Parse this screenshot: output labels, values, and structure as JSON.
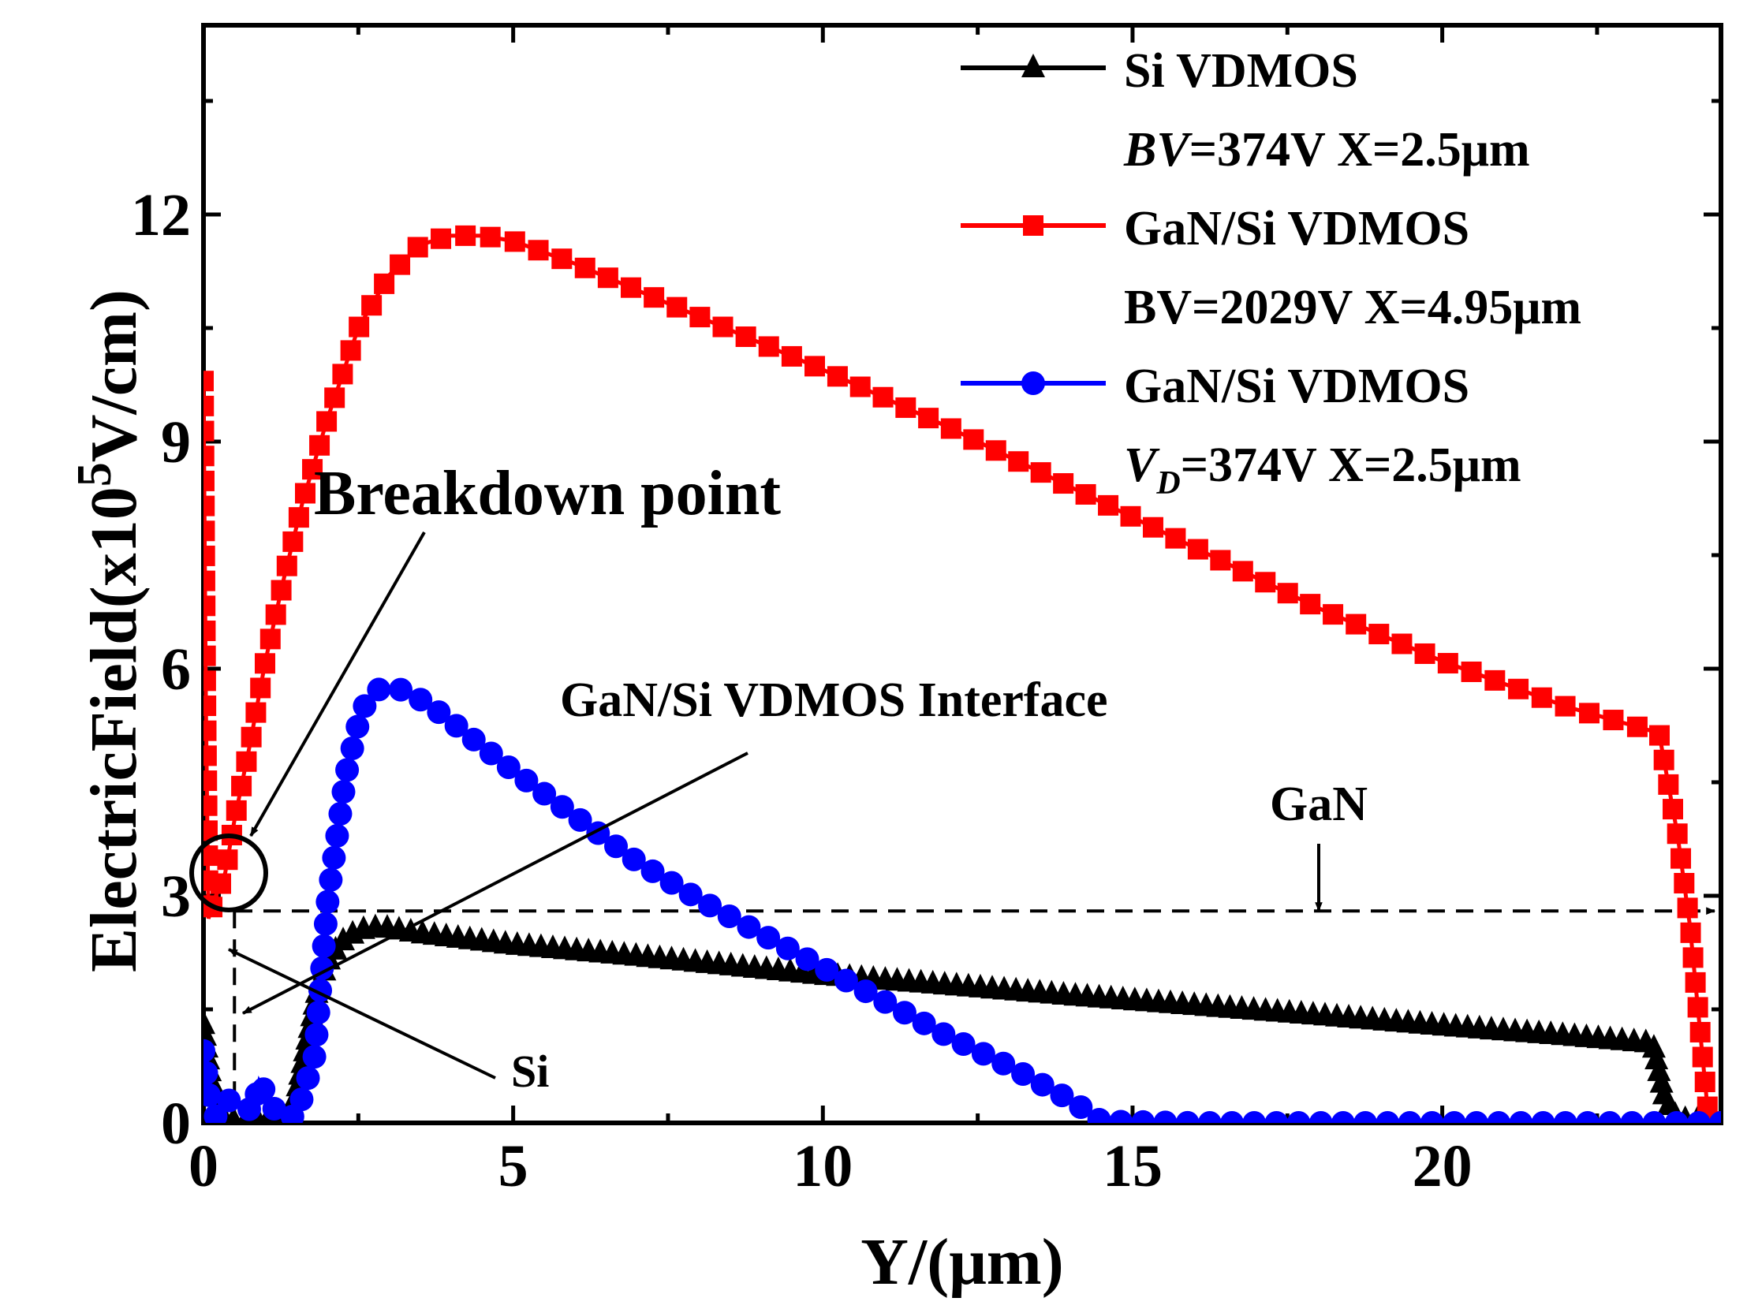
{
  "chart_data": {
    "type": "line",
    "xlabel": "Y/(μm)",
    "ylabel": {
      "main": "ElectricField(x10",
      "exponent": "5",
      "unit": "V/cm)"
    },
    "xlim": [
      0,
      24.5
    ],
    "ylim": [
      0,
      14.5
    ],
    "x_ticks": [
      0,
      5,
      10,
      15,
      20
    ],
    "x_tick_labels": [
      "0",
      "5",
      "10",
      "15",
      "20"
    ],
    "y_ticks": [
      0,
      3,
      6,
      9,
      12
    ],
    "y_tick_labels": [
      "0",
      "3",
      "6",
      "9",
      "12"
    ],
    "legend_position": "top-right",
    "legend": [
      {
        "series": "si",
        "line1": "Si VDMOS",
        "line2_italic": "BV",
        "line2_sub": "",
        "line2_rest": "=374V X=2.5μm"
      },
      {
        "series": "gan_bv",
        "line1": "GaN/Si VDMOS",
        "line2_italic": "",
        "line2_sub": "",
        "line2_rest": "BV=2029V X=4.95μm"
      },
      {
        "series": "gan_vd",
        "line1": "GaN/Si VDMOS",
        "line2_italic": "V",
        "line2_sub": "D",
        "line2_rest": "=374V X=2.5μm"
      }
    ],
    "annotations": {
      "breakdown": "Breakdown point",
      "interface": "GaN/Si VDMOS Interface",
      "gan": "GaN",
      "si": "Si"
    },
    "reference_lines": {
      "horizontal_y": 2.8,
      "vertical_x": 0.5
    },
    "series": [
      {
        "id": "si",
        "color": "#000000",
        "marker": "triangle",
        "points": [
          [
            0,
            1.3
          ],
          [
            0.1,
            0.7
          ],
          [
            0.2,
            0.2
          ],
          [
            0.35,
            0.05
          ],
          [
            0.6,
            0.02
          ],
          [
            0.9,
            0.05
          ],
          [
            1.2,
            0.1
          ],
          [
            1.45,
            0.2
          ],
          [
            1.65,
            1.0
          ],
          [
            1.85,
            1.8
          ],
          [
            2.05,
            2.2
          ],
          [
            2.3,
            2.45
          ],
          [
            2.55,
            2.55
          ],
          [
            2.8,
            2.58
          ],
          [
            3.0,
            2.57
          ],
          [
            3.5,
            2.5
          ],
          [
            5,
            2.35
          ],
          [
            7,
            2.2
          ],
          [
            10,
            1.95
          ],
          [
            12,
            1.82
          ],
          [
            14,
            1.68
          ],
          [
            16,
            1.55
          ],
          [
            18,
            1.42
          ],
          [
            20,
            1.28
          ],
          [
            22,
            1.15
          ],
          [
            23.4,
            1.05
          ],
          [
            23.6,
            0.3
          ],
          [
            23.8,
            0.05
          ],
          [
            24.5,
            0.02
          ]
        ]
      },
      {
        "id": "gan_bv",
        "color": "#ff0000",
        "marker": "square",
        "points": [
          [
            0,
            9.8
          ],
          [
            0.04,
            5.5
          ],
          [
            0.08,
            2.7
          ],
          [
            0.2,
            3.0
          ],
          [
            0.35,
            3.3
          ],
          [
            0.5,
            4.0
          ],
          [
            0.75,
            5.0
          ],
          [
            1.0,
            6.1
          ],
          [
            1.3,
            7.2
          ],
          [
            1.6,
            8.2
          ],
          [
            2.0,
            9.3
          ],
          [
            2.5,
            10.5
          ],
          [
            3.0,
            11.2
          ],
          [
            3.5,
            11.6
          ],
          [
            4.0,
            11.72
          ],
          [
            4.5,
            11.72
          ],
          [
            5.0,
            11.65
          ],
          [
            6.0,
            11.35
          ],
          [
            8.0,
            10.65
          ],
          [
            10.0,
            9.95
          ],
          [
            12.0,
            9.2
          ],
          [
            14.0,
            8.4
          ],
          [
            16.0,
            7.6
          ],
          [
            18.0,
            6.8
          ],
          [
            20.0,
            6.1
          ],
          [
            22.0,
            5.5
          ],
          [
            23.5,
            5.15
          ],
          [
            23.8,
            3.8
          ],
          [
            24.0,
            2.6
          ],
          [
            24.2,
            0.9
          ],
          [
            24.3,
            0.05
          ],
          [
            24.5,
            0.02
          ]
        ]
      },
      {
        "id": "gan_vd",
        "color": "#0000ff",
        "marker": "circle",
        "points": [
          [
            0,
            0.95
          ],
          [
            0.1,
            0.3
          ],
          [
            0.2,
            0.08
          ],
          [
            0.4,
            0.3
          ],
          [
            0.6,
            0.25
          ],
          [
            0.8,
            0.15
          ],
          [
            0.9,
            0.55
          ],
          [
            1.0,
            0.4
          ],
          [
            1.2,
            0.1
          ],
          [
            1.5,
            0.08
          ],
          [
            1.8,
            0.9
          ],
          [
            2.0,
            2.9
          ],
          [
            2.3,
            4.6
          ],
          [
            2.55,
            5.45
          ],
          [
            2.8,
            5.72
          ],
          [
            3.0,
            5.75
          ],
          [
            3.2,
            5.72
          ],
          [
            3.6,
            5.55
          ],
          [
            4.0,
            5.3
          ],
          [
            5.0,
            4.65
          ],
          [
            6.0,
            4.05
          ],
          [
            7.0,
            3.45
          ],
          [
            8.0,
            2.95
          ],
          [
            9.0,
            2.5
          ],
          [
            10.0,
            2.05
          ],
          [
            11.0,
            1.6
          ],
          [
            12.0,
            1.15
          ],
          [
            13.0,
            0.75
          ],
          [
            14.0,
            0.3
          ],
          [
            14.5,
            0.02
          ],
          [
            16,
            0.0
          ],
          [
            18,
            0.0
          ],
          [
            20,
            0.0
          ],
          [
            22,
            0.0
          ],
          [
            24.5,
            0.0
          ]
        ]
      }
    ]
  }
}
